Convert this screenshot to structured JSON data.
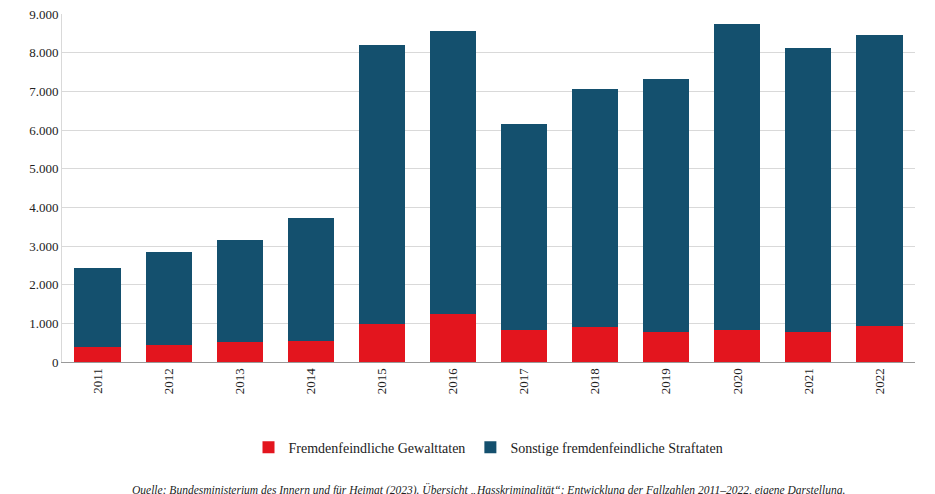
{
  "chart_data": {
    "type": "bar",
    "stacked": true,
    "categories": [
      "2011",
      "2012",
      "2013",
      "2014",
      "2015",
      "2016",
      "2017",
      "2018",
      "2019",
      "2020",
      "2021",
      "2022"
    ],
    "series": [
      {
        "name": "Fremdenfeindliche Gewalttaten",
        "color": "#e3151e",
        "values": [
          380,
          440,
          520,
          540,
          980,
          1250,
          820,
          900,
          770,
          820,
          770,
          930
        ]
      },
      {
        "name": "Sonstige fremdenfeindliche Straftaten",
        "color": "#14506e",
        "values": [
          2060,
          2410,
          2630,
          3180,
          7220,
          7300,
          5340,
          6160,
          6550,
          7910,
          7360,
          7520
        ]
      }
    ],
    "ylim": [
      0,
      9000
    ],
    "yticks": [
      0,
      {
        "value": 1000,
        "label": "1.000"
      },
      {
        "value": 2000,
        "label": "2.000"
      },
      {
        "value": 3000,
        "label": "3.000"
      },
      {
        "value": 4000,
        "label": "4.000"
      },
      {
        "value": 5000,
        "label": "5.000"
      },
      {
        "value": 6000,
        "label": "6.000"
      },
      {
        "value": 7000,
        "label": "7.000"
      },
      {
        "value": 8000,
        "label": "8.000"
      },
      {
        "value": 9000,
        "label": "9.000"
      }
    ],
    "grid": true,
    "legend": "bottom",
    "source": "Quelle: Bundesministerium des Innern und für Heimat (2023). Übersicht „Hasskriminalität“: Entwicklung der Fallzahlen 2011–2022, eigene Darstellung."
  }
}
